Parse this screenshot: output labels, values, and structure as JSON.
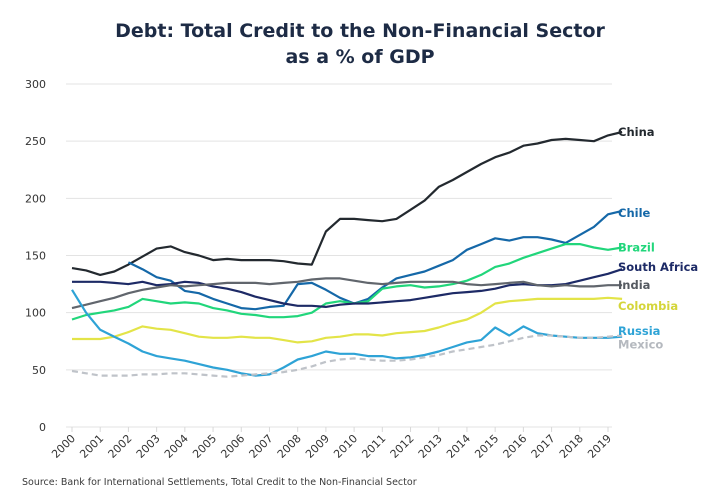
{
  "chart_data": {
    "type": "line",
    "title_line1": "Debt: Total Credit to the Non-Financial Sector",
    "title_line2": "as a % of GDP",
    "xlabel": "",
    "ylabel": "",
    "source": "Source: Bank for International Settlements, Total Credit to the Non-Financial Sector",
    "ylim": [
      0,
      300
    ],
    "xlim": [
      2000,
      2019.6
    ],
    "yticks": [
      0,
      50,
      100,
      150,
      200,
      250,
      300
    ],
    "xticks": [
      "2000",
      "2001",
      "2002",
      "2003",
      "2004",
      "2005",
      "2006",
      "2007",
      "2008",
      "2009",
      "2010",
      "2011",
      "2012",
      "2013",
      "2014",
      "2015",
      "2016",
      "2017",
      "2018",
      "2019"
    ],
    "grid": true,
    "legend": "direct-labels-right",
    "x": [
      2000,
      2000.5,
      2001,
      2001.5,
      2002,
      2002.5,
      2003,
      2003.5,
      2004,
      2004.5,
      2005,
      2005.5,
      2006,
      2006.5,
      2007,
      2007.5,
      2008,
      2008.5,
      2009,
      2009.5,
      2010,
      2010.5,
      2011,
      2011.5,
      2012,
      2012.5,
      2013,
      2013.5,
      2014,
      2014.5,
      2015,
      2015.5,
      2016,
      2016.5,
      2017,
      2017.5,
      2018,
      2018.5,
      2019,
      2019.5
    ],
    "series": [
      {
        "name": "China",
        "color": "#23292f",
        "dashed": false,
        "values": [
          139,
          137,
          133,
          136,
          142,
          149,
          156,
          158,
          153,
          150,
          146,
          147,
          146,
          146,
          146,
          145,
          143,
          142,
          171,
          182,
          182,
          181,
          180,
          182,
          190,
          198,
          210,
          216,
          223,
          230,
          236,
          240,
          246,
          248,
          251,
          252,
          251,
          250,
          255,
          258
        ]
      },
      {
        "name": "Chile",
        "color": "#1568a8",
        "dashed": false,
        "values": [
          null,
          null,
          null,
          null,
          144,
          138,
          131,
          128,
          119,
          117,
          112,
          108,
          104,
          103,
          105,
          106,
          125,
          126,
          120,
          113,
          108,
          112,
          122,
          130,
          133,
          136,
          141,
          146,
          155,
          160,
          165,
          163,
          166,
          166,
          164,
          161,
          168,
          175,
          186,
          189
        ]
      },
      {
        "name": "Brazil",
        "color": "#21d67b",
        "dashed": false,
        "values": [
          94,
          98,
          100,
          102,
          105,
          112,
          110,
          108,
          109,
          108,
          104,
          102,
          99,
          98,
          96,
          96,
          97,
          100,
          108,
          110,
          108,
          110,
          121,
          123,
          124,
          122,
          123,
          125,
          128,
          133,
          140,
          143,
          148,
          152,
          156,
          160,
          160,
          157,
          155,
          157
        ]
      },
      {
        "name": "South Africa",
        "color": "#1d2a66",
        "dashed": false,
        "values": [
          127,
          127,
          127,
          126,
          125,
          127,
          124,
          125,
          127,
          126,
          123,
          121,
          118,
          114,
          111,
          108,
          106,
          106,
          105,
          107,
          108,
          108,
          109,
          110,
          111,
          113,
          115,
          117,
          118,
          119,
          121,
          124,
          125,
          124,
          124,
          125,
          128,
          131,
          134,
          138
        ]
      },
      {
        "name": "India",
        "color": "#61666d",
        "dashed": false,
        "values": [
          104,
          107,
          110,
          113,
          117,
          120,
          122,
          124,
          123,
          124,
          125,
          126,
          126,
          126,
          125,
          126,
          127,
          129,
          130,
          130,
          128,
          126,
          125,
          126,
          127,
          127,
          127,
          127,
          125,
          124,
          125,
          126,
          127,
          124,
          123,
          124,
          123,
          123,
          124,
          124
        ]
      },
      {
        "name": "Colombia",
        "color": "#e3e448",
        "dashed": false,
        "values": [
          77,
          77,
          77,
          79,
          83,
          88,
          86,
          85,
          82,
          79,
          78,
          78,
          79,
          78,
          78,
          76,
          74,
          75,
          78,
          79,
          81,
          81,
          80,
          82,
          83,
          84,
          87,
          91,
          94,
          100,
          108,
          110,
          111,
          112,
          112,
          112,
          112,
          112,
          113,
          112
        ]
      },
      {
        "name": "Russia",
        "color": "#2ea3d6",
        "dashed": false,
        "values": [
          120,
          100,
          85,
          79,
          73,
          66,
          62,
          60,
          58,
          55,
          52,
          50,
          47,
          45,
          46,
          52,
          59,
          62,
          66,
          64,
          64,
          62,
          62,
          60,
          61,
          63,
          66,
          70,
          74,
          76,
          87,
          80,
          88,
          82,
          80,
          79,
          78,
          78,
          78,
          79
        ]
      },
      {
        "name": "Mexico",
        "color": "#bfc3c9",
        "dashed": true,
        "values": [
          49,
          47,
          45,
          45,
          45,
          46,
          46,
          47,
          47,
          46,
          45,
          44,
          45,
          46,
          47,
          48,
          50,
          53,
          57,
          59,
          60,
          59,
          58,
          58,
          59,
          61,
          63,
          66,
          68,
          70,
          72,
          75,
          78,
          80,
          80,
          79,
          78,
          78,
          79,
          80
        ]
      }
    ],
    "labels_y": {
      "China": 258,
      "Chile": 187,
      "Brazil": 157,
      "South Africa": 140,
      "India": 124,
      "Colombia": 106,
      "Russia": 84,
      "Mexico": 72
    }
  }
}
